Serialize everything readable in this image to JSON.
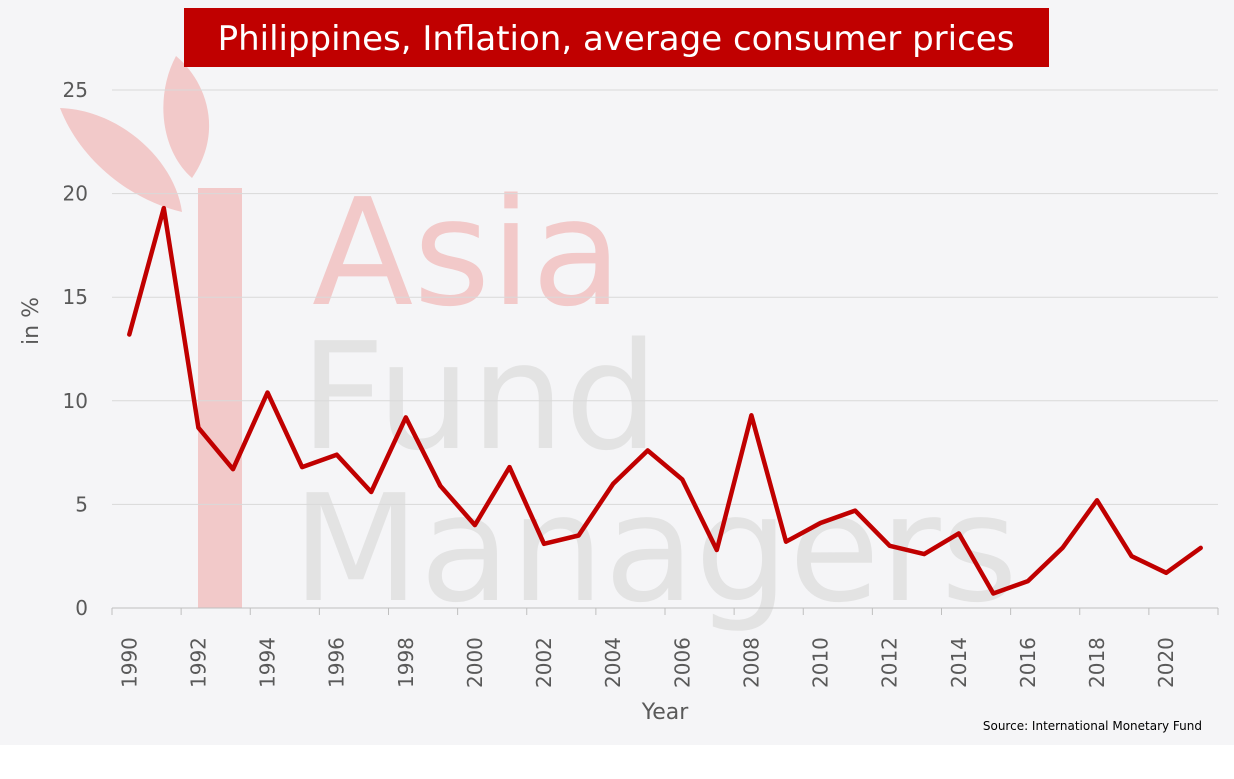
{
  "colors": {
    "accent": "#c00000",
    "title_text": "#ffffff",
    "plot_background": "#f5f5f7",
    "gridline": "#d9d9d9",
    "watermark_red": "#f2c9c9",
    "watermark_gray": "#e3e3e3"
  },
  "watermark": {
    "lines": [
      "Asia",
      "Fund",
      "Managers"
    ],
    "icon": "bamboo-leaf-icon"
  },
  "source": "Source: International Monetary Fund",
  "chart_data": {
    "type": "line",
    "title": "Philippines, Inflation, average consumer prices",
    "xlabel": "Year",
    "ylabel": "in %",
    "ylim": [
      0,
      25
    ],
    "yticks": [
      0,
      5,
      10,
      15,
      20,
      25
    ],
    "xticks": [
      1990,
      1992,
      1994,
      1996,
      1998,
      2000,
      2002,
      2004,
      2006,
      2008,
      2010,
      2012,
      2014,
      2016,
      2018,
      2020
    ],
    "xlim": [
      1990,
      2021
    ],
    "grid": true,
    "legend": false,
    "series": [
      {
        "x": [
          1990,
          1991,
          1992,
          1993,
          1994,
          1995,
          1996,
          1997,
          1998,
          1999,
          2000,
          2001,
          2002,
          2003,
          2004,
          2005,
          2006,
          2007,
          2008,
          2009,
          2010,
          2011,
          2012,
          2013,
          2014,
          2015,
          2016,
          2017,
          2018,
          2019,
          2020,
          2021
        ],
        "values": [
          13.2,
          19.3,
          8.7,
          6.7,
          10.4,
          6.8,
          7.4,
          5.6,
          9.2,
          5.9,
          4.0,
          6.8,
          3.1,
          3.5,
          6.0,
          7.6,
          6.2,
          2.8,
          9.3,
          3.2,
          4.1,
          4.7,
          3.0,
          2.6,
          3.6,
          0.7,
          1.3,
          2.9,
          5.2,
          2.5,
          1.7,
          2.9
        ]
      }
    ]
  }
}
